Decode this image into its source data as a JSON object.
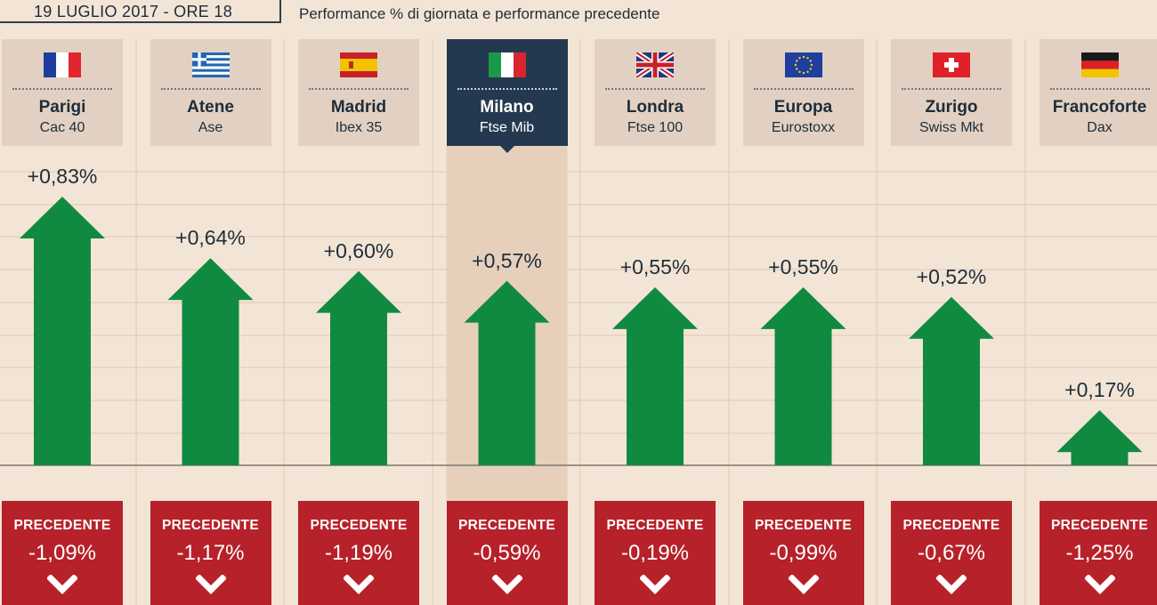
{
  "header": {
    "date": "19 LUGLIO 2017 - ORE 18",
    "subtitle": "Performance % di giornata e performance precedente"
  },
  "colors": {
    "up_arrow": "#118a41",
    "previous_box": "#b7212a",
    "active_header": "#24394f",
    "header": "#e2d1c2",
    "background": "#f3e5d6"
  },
  "previous_label": "PRECEDENTE",
  "markets": [
    {
      "city": "Parigi",
      "index": "Cac 40",
      "flag": "france-flag-icon",
      "today_label": "+0,83%",
      "previous_label": "-1,09%",
      "active": false
    },
    {
      "city": "Atene",
      "index": "Ase",
      "flag": "greece-flag-icon",
      "today_label": "+0,64%",
      "previous_label": "-1,17%",
      "active": false
    },
    {
      "city": "Madrid",
      "index": "Ibex 35",
      "flag": "spain-flag-icon",
      "today_label": "+0,60%",
      "previous_label": "-1,19%",
      "active": false
    },
    {
      "city": "Milano",
      "index": "Ftse Mib",
      "flag": "italy-flag-icon",
      "today_label": "+0,57%",
      "previous_label": "-0,59%",
      "active": true
    },
    {
      "city": "Londra",
      "index": "Ftse 100",
      "flag": "uk-flag-icon",
      "today_label": "+0,55%",
      "previous_label": "-0,19%",
      "active": false
    },
    {
      "city": "Europa",
      "index": "Eurostoxx",
      "flag": "eu-flag-icon",
      "today_label": "+0,55%",
      "previous_label": "-0,99%",
      "active": false
    },
    {
      "city": "Zurigo",
      "index": "Swiss Mkt",
      "flag": "switzerland-flag-icon",
      "today_label": "+0,52%",
      "previous_label": "-0,67%",
      "active": false
    },
    {
      "city": "Francoforte",
      "index": "Dax",
      "flag": "germany-flag-icon",
      "today_label": "+0,17%",
      "previous_label": "-1,25%",
      "active": false
    }
  ],
  "chart_data": {
    "type": "bar",
    "categories": [
      "Parigi",
      "Atene",
      "Madrid",
      "Milano",
      "Londra",
      "Europa",
      "Zurigo",
      "Francoforte"
    ],
    "series": [
      {
        "values": [
          0.83,
          0.64,
          0.6,
          0.57,
          0.55,
          0.55,
          0.52,
          0.17
        ]
      },
      {
        "name": "PRECEDENTE",
        "values": [
          -1.09,
          -1.17,
          -1.19,
          -0.59,
          -0.19,
          -0.99,
          -0.67,
          -1.25
        ]
      }
    ],
    "title": "Performance % di giornata e performance precedente",
    "ylim": [
      0,
      0.83
    ]
  }
}
